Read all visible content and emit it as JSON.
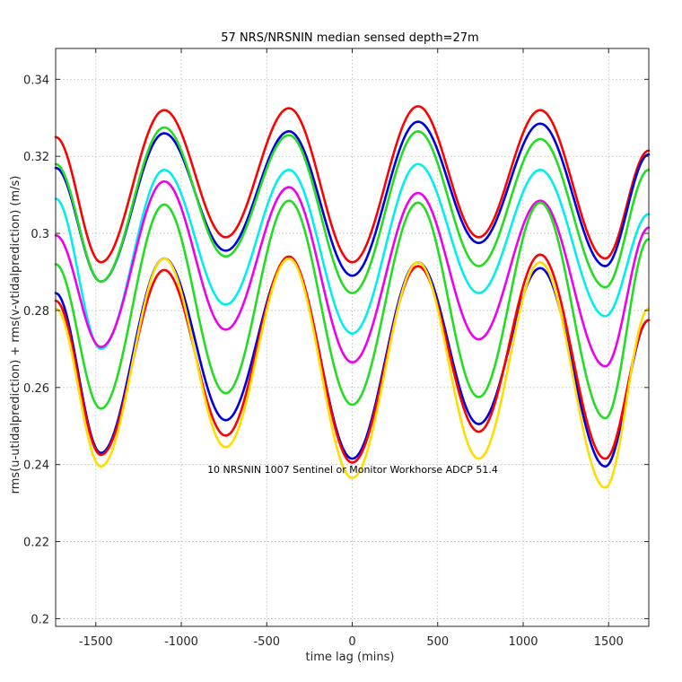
{
  "chart_data": {
    "type": "line",
    "title": "57 NRS/NRSNIN median sensed depth=27m",
    "xlabel": "time lag (mins)",
    "ylabel": "rms(u-utidalprediction) + rms(v-vtidalprediction) (m/s)",
    "xlim": [
      -1735,
      1735
    ],
    "ylim": [
      0.198,
      0.348
    ],
    "xticks": [
      -1500,
      -1000,
      -500,
      0,
      500,
      1000,
      1500
    ],
    "xtick_labels": [
      "-1500",
      "-1000",
      "-500",
      "0",
      "500",
      "1000",
      "1500"
    ],
    "yticks": [
      0.2,
      0.22,
      0.24,
      0.26,
      0.28,
      0.3,
      0.32,
      0.34
    ],
    "ytick_labels": [
      "0.2",
      "0.22",
      "0.24",
      "0.26",
      "0.28",
      "0.3",
      "0.32",
      "0.34"
    ],
    "grid": true,
    "annotation": "10 NRSNIN 1007 Sentinel or Monitor Workhorse ADCP 51.4",
    "series": [
      {
        "color": "#ff0000",
        "x": [
          -1735,
          -1470,
          -1100,
          -740,
          -370,
          0,
          385,
          740,
          1100,
          1480,
          1735
        ],
        "y": [
          0.325,
          0.2925,
          0.332,
          0.299,
          0.3325,
          0.2925,
          0.333,
          0.299,
          0.332,
          0.2935,
          0.3215
        ]
      },
      {
        "color": "#0000dd",
        "x": [
          -1735,
          -1470,
          -1100,
          -740,
          -370,
          0,
          385,
          740,
          1100,
          1480,
          1735
        ],
        "y": [
          0.317,
          0.2875,
          0.326,
          0.2955,
          0.3265,
          0.289,
          0.329,
          0.2975,
          0.3285,
          0.2915,
          0.3205
        ]
      },
      {
        "color": "#22dd22",
        "x": [
          -1735,
          -1470,
          -1100,
          -740,
          -370,
          0,
          385,
          740,
          1100,
          1480,
          1735
        ],
        "y": [
          0.318,
          0.2875,
          0.3275,
          0.294,
          0.3255,
          0.2845,
          0.3265,
          0.2915,
          0.3245,
          0.286,
          0.3165
        ]
      },
      {
        "color": "#00eeee",
        "x": [
          -1735,
          -1470,
          -1100,
          -740,
          -370,
          0,
          385,
          740,
          1100,
          1480,
          1735
        ],
        "y": [
          0.309,
          0.27,
          0.3165,
          0.2815,
          0.3165,
          0.274,
          0.318,
          0.2845,
          0.3165,
          0.2785,
          0.305
        ]
      },
      {
        "color": "#ee00ee",
        "x": [
          -1735,
          -1470,
          -1100,
          -740,
          -370,
          0,
          385,
          740,
          1100,
          1480,
          1735
        ],
        "y": [
          0.2995,
          0.2705,
          0.3135,
          0.275,
          0.312,
          0.2665,
          0.3105,
          0.2725,
          0.3085,
          0.2655,
          0.3015
        ]
      },
      {
        "color": "#22dd22",
        "x": [
          -1735,
          -1470,
          -1100,
          -740,
          -370,
          0,
          385,
          740,
          1100,
          1480,
          1735
        ],
        "y": [
          0.292,
          0.2545,
          0.3075,
          0.2585,
          0.3085,
          0.2555,
          0.308,
          0.2575,
          0.308,
          0.252,
          0.2985
        ]
      },
      {
        "color": "#0000dd",
        "x": [
          -1735,
          -1470,
          -1100,
          -740,
          -370,
          0,
          385,
          740,
          1100,
          1480,
          1735
        ],
        "y": [
          0.2845,
          0.243,
          0.2935,
          0.2515,
          0.2935,
          0.2415,
          0.2925,
          0.2505,
          0.291,
          0.2395,
          0.2775
        ]
      },
      {
        "color": "#ff0000",
        "x": [
          -1735,
          -1470,
          -1100,
          -740,
          -370,
          0,
          385,
          740,
          1100,
          1480,
          1735
        ],
        "y": [
          0.2825,
          0.2425,
          0.2905,
          0.2475,
          0.294,
          0.2405,
          0.2915,
          0.2485,
          0.2945,
          0.2415,
          0.2775
        ]
      },
      {
        "color": "#ffdd00",
        "x": [
          -1735,
          -1470,
          -1100,
          -740,
          -370,
          0,
          385,
          740,
          1100,
          1480,
          1735
        ],
        "y": [
          0.2805,
          0.2395,
          0.2935,
          0.2445,
          0.2935,
          0.2365,
          0.2925,
          0.2415,
          0.2925,
          0.234,
          0.2805
        ]
      }
    ]
  }
}
